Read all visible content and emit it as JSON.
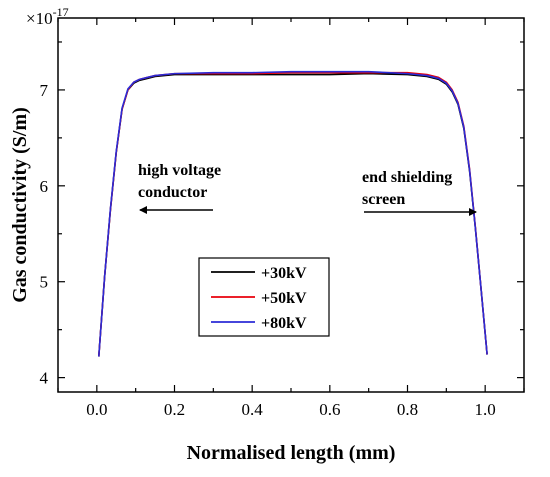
{
  "chart_data": {
    "type": "line",
    "title": "",
    "xlabel": "Normalised length (mm)",
    "ylabel": "Gas conductivity (S/m)",
    "y_multiplier": "×10",
    "y_exponent": "-17",
    "xlim": [
      -0.1,
      1.1
    ],
    "ylim": [
      3.85,
      7.75
    ],
    "x_ticks": [
      0.0,
      0.2,
      0.4,
      0.6,
      0.8,
      1.0
    ],
    "x_tick_labels": [
      "0.0",
      "0.2",
      "0.4",
      "0.6",
      "0.8",
      "1.0"
    ],
    "y_ticks": [
      4,
      5,
      6,
      7
    ],
    "y_tick_labels": [
      "4",
      "5",
      "6",
      "7"
    ],
    "grid": false,
    "legend_position": "lower-center",
    "annotations": [
      {
        "lines": [
          "high voltage",
          "conductor"
        ],
        "arrow": "left"
      },
      {
        "lines": [
          "end shielding",
          "screen"
        ],
        "arrow": "right"
      }
    ],
    "series": [
      {
        "name": "+30kV",
        "color": "#000000",
        "x": [
          0.005,
          0.02,
          0.035,
          0.05,
          0.065,
          0.08,
          0.095,
          0.11,
          0.13,
          0.15,
          0.2,
          0.3,
          0.4,
          0.5,
          0.6,
          0.7,
          0.8,
          0.85,
          0.88,
          0.9,
          0.915,
          0.93,
          0.945,
          0.96,
          0.975,
          0.99,
          1.005
        ],
        "y": [
          4.22,
          5.05,
          5.75,
          6.35,
          6.8,
          7.0,
          7.07,
          7.1,
          7.12,
          7.14,
          7.16,
          7.16,
          7.16,
          7.16,
          7.16,
          7.17,
          7.16,
          7.14,
          7.11,
          7.06,
          6.98,
          6.85,
          6.6,
          6.15,
          5.55,
          4.9,
          4.24
        ]
      },
      {
        "name": "+50kV",
        "color": "#e8000b",
        "x": [
          0.005,
          0.02,
          0.035,
          0.05,
          0.065,
          0.08,
          0.095,
          0.11,
          0.13,
          0.15,
          0.2,
          0.3,
          0.4,
          0.5,
          0.6,
          0.7,
          0.8,
          0.85,
          0.88,
          0.9,
          0.915,
          0.93,
          0.945,
          0.96,
          0.975,
          0.99,
          1.005
        ],
        "y": [
          4.22,
          5.05,
          5.75,
          6.35,
          6.8,
          7.0,
          7.08,
          7.11,
          7.13,
          7.15,
          7.17,
          7.17,
          7.17,
          7.18,
          7.18,
          7.18,
          7.18,
          7.16,
          7.13,
          7.08,
          7.0,
          6.87,
          6.62,
          6.17,
          5.56,
          4.9,
          4.24
        ]
      },
      {
        "name": "+80kV",
        "color": "#2b2bd6",
        "x": [
          0.005,
          0.02,
          0.035,
          0.05,
          0.065,
          0.08,
          0.095,
          0.11,
          0.13,
          0.15,
          0.2,
          0.3,
          0.4,
          0.5,
          0.6,
          0.7,
          0.8,
          0.85,
          0.88,
          0.9,
          0.915,
          0.93,
          0.945,
          0.96,
          0.975,
          0.99,
          1.005
        ],
        "y": [
          4.22,
          5.05,
          5.76,
          6.36,
          6.81,
          7.01,
          7.08,
          7.11,
          7.13,
          7.15,
          7.17,
          7.18,
          7.18,
          7.19,
          7.19,
          7.19,
          7.17,
          7.15,
          7.12,
          7.07,
          6.99,
          6.86,
          6.61,
          6.16,
          5.55,
          4.9,
          4.24
        ]
      }
    ]
  }
}
